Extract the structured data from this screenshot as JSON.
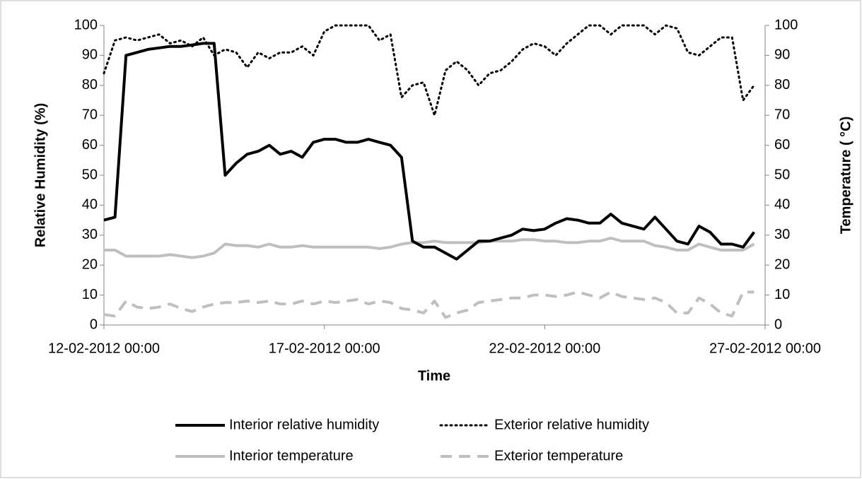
{
  "chart_data": {
    "type": "line",
    "x_label": "Time",
    "y_label": "Relative Humidity (%)",
    "y2_label": "Temperature ( °C)",
    "x": [
      "12-02-2012 00:00",
      "12-02-2012 06:00",
      "12-02-2012 12:00",
      "12-02-2012 18:00",
      "13-02-2012 00:00",
      "13-02-2012 06:00",
      "13-02-2012 12:00",
      "13-02-2012 18:00",
      "14-02-2012 00:00",
      "14-02-2012 06:00",
      "14-02-2012 12:00",
      "14-02-2012 18:00",
      "15-02-2012 00:00",
      "15-02-2012 06:00",
      "15-02-2012 12:00",
      "15-02-2012 18:00",
      "16-02-2012 00:00",
      "16-02-2012 06:00",
      "16-02-2012 12:00",
      "16-02-2012 18:00",
      "17-02-2012 00:00",
      "17-02-2012 06:00",
      "17-02-2012 12:00",
      "17-02-2012 18:00",
      "18-02-2012 00:00",
      "18-02-2012 06:00",
      "18-02-2012 12:00",
      "18-02-2012 18:00",
      "19-02-2012 00:00",
      "19-02-2012 06:00",
      "19-02-2012 12:00",
      "19-02-2012 18:00",
      "20-02-2012 00:00",
      "20-02-2012 06:00",
      "20-02-2012 12:00",
      "20-02-2012 18:00",
      "21-02-2012 00:00",
      "21-02-2012 06:00",
      "21-02-2012 12:00",
      "21-02-2012 18:00",
      "22-02-2012 00:00",
      "22-02-2012 06:00",
      "22-02-2012 12:00",
      "22-02-2012 18:00",
      "23-02-2012 00:00",
      "23-02-2012 06:00",
      "23-02-2012 12:00",
      "23-02-2012 18:00",
      "24-02-2012 00:00",
      "24-02-2012 06:00",
      "24-02-2012 12:00",
      "24-02-2012 18:00",
      "25-02-2012 00:00",
      "25-02-2012 06:00",
      "25-02-2012 12:00",
      "25-02-2012 18:00",
      "26-02-2012 00:00",
      "26-02-2012 06:00",
      "26-02-2012 12:00",
      "26-02-2012 18:00"
    ],
    "xlim": [
      "12-02-2012 00:00",
      "27-02-2012 00:00"
    ],
    "xticks": [
      "12-02-2012 00:00",
      "17-02-2012 00:00",
      "22-02-2012 00:00",
      "27-02-2012 00:00"
    ],
    "ylim": [
      0,
      100
    ],
    "yticks": [
      0,
      10,
      20,
      30,
      40,
      50,
      60,
      70,
      80,
      90,
      100
    ],
    "y2lim": [
      0,
      100
    ],
    "y2ticks": [
      0,
      10,
      20,
      30,
      40,
      50,
      60,
      70,
      80,
      90,
      100
    ],
    "legend": "bottom",
    "series": [
      {
        "name": "Interior relative humidity",
        "color": "#000000",
        "dash": "solid",
        "values": [
          35,
          36,
          90,
          91,
          92,
          92.5,
          93,
          93,
          93.5,
          94,
          94,
          50,
          54,
          57,
          58,
          60,
          57,
          58,
          56,
          61,
          62,
          62,
          61,
          61,
          62,
          61,
          60,
          56,
          28,
          26,
          26,
          24,
          22,
          25,
          28,
          28,
          29,
          30,
          32,
          31.5,
          32,
          34,
          35.5,
          35,
          34,
          34,
          37,
          34,
          33,
          32,
          36,
          32,
          28,
          27,
          33,
          31,
          27,
          27,
          26,
          31
        ]
      },
      {
        "name": "Exterior relative humidity",
        "color": "#000000",
        "dash": "dotted",
        "values": [
          84,
          95,
          96,
          95,
          96,
          97,
          94,
          95,
          93,
          96,
          90,
          92,
          91,
          86,
          91,
          89,
          91,
          91,
          93,
          90,
          98,
          100,
          100,
          100,
          100,
          95,
          97,
          76,
          80,
          81,
          70,
          85,
          88,
          85,
          80,
          84,
          85,
          88,
          92,
          94,
          93,
          90,
          94,
          97,
          100,
          100,
          97,
          100,
          100,
          100,
          97,
          100,
          99,
          91,
          90,
          93,
          96,
          96,
          75,
          80
        ]
      },
      {
        "name": "Interior temperature",
        "color": "#bfbfbf",
        "dash": "solid",
        "axis": "y2",
        "values": [
          25,
          25,
          23,
          23,
          23,
          23,
          23.5,
          23,
          22.5,
          23,
          24,
          27,
          26.5,
          26.5,
          26,
          27,
          26,
          26,
          26.5,
          26,
          26,
          26,
          26,
          26,
          26,
          25.5,
          26,
          27,
          27.5,
          27.5,
          28,
          27.5,
          27.5,
          27.5,
          27.5,
          28,
          28,
          28,
          28.5,
          28.5,
          28,
          28,
          27.5,
          27.5,
          28,
          28,
          29,
          28,
          28,
          28,
          26.5,
          26,
          25,
          25,
          27,
          26,
          25,
          25,
          25,
          27
        ]
      },
      {
        "name": "Exterior temperature",
        "color": "#bfbfbf",
        "dash": "dashed",
        "axis": "y2",
        "values": [
          3.5,
          3,
          8,
          6,
          5.5,
          6,
          7,
          5.5,
          4.5,
          6,
          7,
          7.5,
          7.5,
          8,
          7.5,
          8,
          7,
          7,
          8,
          7,
          8,
          7.5,
          8,
          8.5,
          7,
          8,
          7.5,
          5.5,
          5,
          4,
          8,
          2.5,
          4,
          5,
          7.5,
          8,
          8.5,
          9,
          9,
          10,
          10,
          9.5,
          10,
          11,
          10,
          9,
          11,
          9.5,
          9,
          8.5,
          9,
          7.5,
          4,
          4,
          9,
          7,
          4,
          3,
          11,
          11
        ]
      }
    ]
  }
}
